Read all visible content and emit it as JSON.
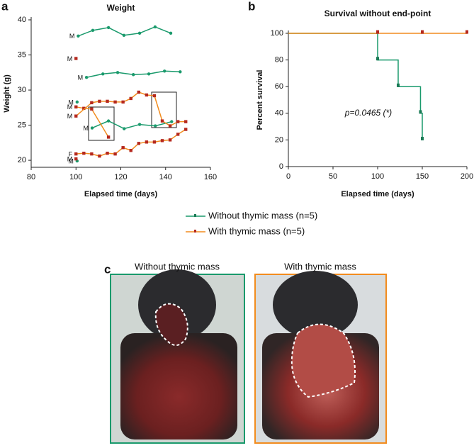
{
  "chart_data": [
    {
      "type": "line",
      "panel": "a",
      "title": "Weight",
      "x_label": "Elapsed time (days)",
      "y_label": "Weight (g)",
      "xlim": [
        80,
        160
      ],
      "xticks": [
        80,
        100,
        120,
        140,
        160
      ],
      "ylim": [
        19,
        40
      ],
      "yticks": [
        20,
        25,
        30,
        35,
        40
      ],
      "series": [
        {
          "label": "M",
          "color": "#1a9a6c",
          "x": [
            101,
            107.5,
            114.5,
            121.4,
            128.4,
            135.3,
            142.3
          ],
          "values": [
            37.7,
            38.5,
            38.9,
            37.8,
            38.1,
            39.0,
            38.1
          ]
        },
        {
          "label": "M",
          "color": "#1a9a6c",
          "x": [
            104.7,
            112,
            118.6,
            125.6,
            132.5,
            139.5,
            146.5
          ],
          "values": [
            31.8,
            32.3,
            32.5,
            32.2,
            32.3,
            32.7,
            32.6
          ]
        },
        {
          "label": "M",
          "color": "#1a9a6c",
          "x": [
            100.5
          ],
          "values": [
            28.3
          ]
        },
        {
          "label": "M",
          "color": "#1a9a6c",
          "x": [
            107.2,
            114.5,
            121.5,
            128.4,
            135.4,
            142.7
          ],
          "values": [
            24.6,
            25.6,
            24.5,
            25.1,
            24.9,
            25.5
          ]
        },
        {
          "label": "M",
          "color": "#1a9a6c",
          "x": [
            100.5
          ],
          "values": [
            19.9
          ]
        },
        {
          "label": "M",
          "color": "#f28c1e",
          "x": [
            100
          ],
          "values": [
            34.5
          ]
        },
        {
          "label": "M",
          "color": "#f28c1e",
          "x": [
            100,
            103.5,
            107,
            114.5
          ],
          "values": [
            27.6,
            27.4,
            27.3,
            23.3
          ]
        },
        {
          "label": "M",
          "color": "#f28c1e",
          "x": [
            100,
            107,
            110.5,
            114,
            117.5,
            121,
            124.5,
            128,
            131.5,
            135,
            138.5,
            142,
            145.5,
            149
          ],
          "values": [
            26.3,
            28.2,
            28.4,
            28.4,
            28.3,
            28.3,
            28.8,
            29.7,
            29.3,
            29.2,
            25.6,
            24.9,
            25.5,
            25.5
          ]
        },
        {
          "label": "F",
          "color": "#f28c1e",
          "x": [
            100,
            103.5,
            107,
            110.5,
            114,
            117.5,
            121,
            124.5,
            128,
            131.5,
            135,
            138.5,
            142,
            145.5,
            149
          ],
          "values": [
            20.9,
            21.0,
            20.9,
            20.6,
            21.0,
            20.9,
            21.8,
            21.4,
            22.4,
            22.6,
            22.6,
            22.8,
            22.9,
            23.7,
            24.4
          ]
        },
        {
          "label": "M",
          "color": "#f28c1e",
          "x": [
            100
          ],
          "values": [
            20.2
          ]
        }
      ]
    },
    {
      "type": "step",
      "panel": "b",
      "title": "Survival without end-point",
      "x_label": "Elapsed time (days)",
      "y_label": "Percent survival",
      "annotation": "p=0.0465 (*)",
      "xlim": [
        0,
        200
      ],
      "xticks": [
        0,
        50,
        100,
        150,
        200
      ],
      "ylim": [
        0,
        100
      ],
      "yticks": [
        0,
        20,
        40,
        60,
        80,
        100
      ],
      "series": [
        {
          "name": "Without thymic mass (n=5)",
          "color": "#1a9a6c",
          "x": [
            0,
            100,
            123,
            148,
            150
          ],
          "values": [
            100,
            80,
            60,
            40,
            20
          ],
          "censor_x": [
            100,
            123,
            148,
            150
          ],
          "censor_values": [
            81,
            61,
            41,
            21
          ]
        },
        {
          "name": "With thymic mass (n=5)",
          "color": "#f28c1e",
          "x": [
            0,
            200
          ],
          "values": [
            100,
            100
          ],
          "censor_x": [
            100,
            150,
            200
          ],
          "censor_values": [
            101,
            101,
            101
          ]
        }
      ]
    }
  ],
  "photos": {
    "panel": "c",
    "left_title": "Without thymic mass",
    "right_title": "With thymic mass"
  }
}
